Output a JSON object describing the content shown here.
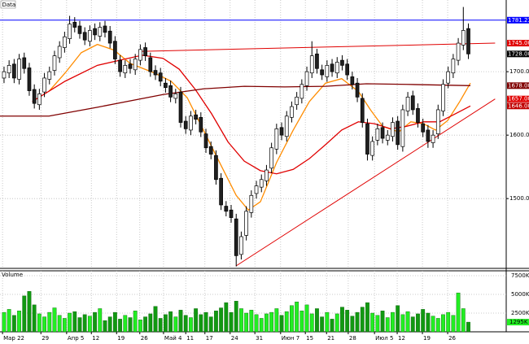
{
  "chart_data": {
    "type": "candlestick",
    "title": "Data",
    "xlim": [
      -0.8,
      99.5
    ],
    "xticks": [
      {
        "value": -0.3,
        "label": "Мар 22"
      },
      {
        "value": 7.3,
        "label": "29"
      },
      {
        "value": 12.4,
        "label": "Апр 5"
      },
      {
        "value": 17.3,
        "label": "12"
      },
      {
        "value": 22.3,
        "label": "19"
      },
      {
        "value": 26.9,
        "label": "26"
      },
      {
        "value": 31.6,
        "label": "Май 4"
      },
      {
        "value": 36,
        "label": "11"
      },
      {
        "value": 39.8,
        "label": "17"
      },
      {
        "value": 44.8,
        "label": "24"
      },
      {
        "value": 49.7,
        "label": "31"
      },
      {
        "value": 54.8,
        "label": "Июн 7"
      },
      {
        "value": 59.7,
        "label": "15"
      },
      {
        "value": 63.9,
        "label": "21"
      },
      {
        "value": 68.2,
        "label": "28"
      },
      {
        "value": 73.4,
        "label": "Июл 5"
      },
      {
        "value": 77.9,
        "label": "12"
      },
      {
        "value": 82.9,
        "label": "19"
      },
      {
        "value": 87.9,
        "label": "26"
      }
    ],
    "ylim": [
      1390,
      1813
    ],
    "yticks": [
      {
        "value": 1500,
        "label": "1500.00"
      },
      {
        "value": 1600,
        "label": "1600.00"
      },
      {
        "value": 1700,
        "label": "1700.00"
      }
    ],
    "grid": true,
    "up_color": "#ffffff",
    "down_color": "#202020",
    "candles": {
      "open": [
        1690,
        1698,
        1712,
        1688,
        1722,
        1706,
        1672,
        1648,
        1668,
        1688,
        1702,
        1722,
        1738,
        1752,
        1778,
        1772,
        1762,
        1748,
        1768,
        1756,
        1772,
        1764,
        1748,
        1718,
        1698,
        1712,
        1703,
        1718,
        1738,
        1722,
        1702,
        1698,
        1682,
        1678,
        1658,
        1668,
        1622,
        1608,
        1632,
        1628,
        1602,
        1582,
        1568,
        1532,
        1488,
        1482,
        1468,
        1412,
        1442,
        1478,
        1508,
        1518,
        1528,
        1548,
        1578,
        1612,
        1598,
        1628,
        1648,
        1658,
        1678,
        1698,
        1728,
        1703,
        1692,
        1712,
        1698,
        1718,
        1712,
        1692,
        1682,
        1658,
        1618,
        1568,
        1592,
        1612,
        1592,
        1598,
        1622,
        1582,
        1638,
        1662,
        1642,
        1618,
        1608,
        1588,
        1602,
        1638,
        1682,
        1698,
        1718,
        1742,
        1768
      ],
      "high": [
        1708,
        1718,
        1720,
        1728,
        1730,
        1714,
        1680,
        1673,
        1698,
        1708,
        1733,
        1748,
        1763,
        1788,
        1786,
        1780,
        1770,
        1773,
        1776,
        1778,
        1780,
        1772,
        1756,
        1726,
        1718,
        1720,
        1728,
        1743,
        1746,
        1730,
        1710,
        1706,
        1690,
        1686,
        1673,
        1676,
        1630,
        1638,
        1640,
        1636,
        1610,
        1590,
        1576,
        1540,
        1496,
        1490,
        1476,
        1448,
        1488,
        1513,
        1528,
        1538,
        1553,
        1588,
        1618,
        1620,
        1638,
        1653,
        1668,
        1688,
        1708,
        1748,
        1736,
        1711,
        1718,
        1720,
        1723,
        1726,
        1720,
        1700,
        1690,
        1666,
        1626,
        1598,
        1618,
        1620,
        1608,
        1628,
        1630,
        1648,
        1668,
        1670,
        1650,
        1626,
        1616,
        1608,
        1648,
        1688,
        1708,
        1728,
        1753,
        1802,
        1776
      ],
      "low": [
        1682,
        1690,
        1682,
        1680,
        1697,
        1662,
        1642,
        1640,
        1660,
        1680,
        1694,
        1714,
        1730,
        1744,
        1762,
        1752,
        1742,
        1740,
        1750,
        1748,
        1754,
        1737,
        1712,
        1692,
        1690,
        1697,
        1695,
        1710,
        1717,
        1692,
        1687,
        1677,
        1667,
        1652,
        1650,
        1612,
        1602,
        1600,
        1617,
        1597,
        1572,
        1562,
        1522,
        1482,
        1472,
        1462,
        1393,
        1404,
        1434,
        1470,
        1500,
        1510,
        1520,
        1540,
        1570,
        1592,
        1590,
        1620,
        1640,
        1650,
        1670,
        1690,
        1697,
        1687,
        1684,
        1692,
        1690,
        1702,
        1687,
        1672,
        1652,
        1612,
        1560,
        1560,
        1584,
        1587,
        1584,
        1590,
        1577,
        1574,
        1630,
        1632,
        1612,
        1597,
        1580,
        1580,
        1594,
        1630,
        1674,
        1690,
        1710,
        1734,
        1720
      ],
      "close": [
        1700,
        1710,
        1690,
        1720,
        1705,
        1670,
        1650,
        1665,
        1690,
        1700,
        1725,
        1740,
        1755,
        1775,
        1770,
        1760,
        1750,
        1765,
        1758,
        1770,
        1762,
        1745,
        1720,
        1700,
        1710,
        1705,
        1720,
        1735,
        1725,
        1700,
        1695,
        1685,
        1675,
        1660,
        1665,
        1620,
        1610,
        1630,
        1625,
        1605,
        1580,
        1570,
        1530,
        1490,
        1480,
        1470,
        1410,
        1440,
        1480,
        1505,
        1520,
        1530,
        1545,
        1580,
        1610,
        1600,
        1630,
        1645,
        1660,
        1680,
        1700,
        1725,
        1705,
        1695,
        1710,
        1700,
        1715,
        1710,
        1695,
        1680,
        1660,
        1620,
        1570,
        1590,
        1610,
        1595,
        1600,
        1620,
        1585,
        1640,
        1660,
        1640,
        1620,
        1605,
        1590,
        1600,
        1640,
        1680,
        1700,
        1720,
        1745,
        1765,
        1728
      ]
    },
    "lines": [
      {
        "color": "#ff8c00",
        "x": [
          8.9,
          12.1,
          15.3,
          18.5,
          21.8,
          25.0,
          29.8,
          33.1,
          36.3,
          39.5,
          42.7,
          46.0,
          48.4,
          50.8,
          54.0,
          57.3,
          60.5,
          63.7,
          66.9,
          70.2,
          72.6,
          75.0,
          78.2,
          80.6,
          83.1,
          85.5,
          87.9,
          90.3,
          92.4
        ],
        "values": [
          1669,
          1698,
          1730,
          1743,
          1734,
          1713,
          1698,
          1685,
          1659,
          1608,
          1557,
          1505,
          1482,
          1495,
          1557,
          1608,
          1653,
          1682,
          1689,
          1669,
          1640,
          1614,
          1605,
          1621,
          1618,
          1608,
          1623,
          1653,
          1682
        ]
      },
      {
        "color": "#e00000",
        "x": [
          5.6,
          12.1,
          18.5,
          23.4,
          27.4,
          31.5,
          34.7,
          37.9,
          41.1,
          44.4,
          47.6,
          50.8,
          54.0,
          57.3,
          60.5,
          63.7,
          66.9,
          70.2,
          73.4,
          76.6,
          79.8,
          83.1,
          86.3,
          89.5,
          92.4
        ],
        "values": [
          1653,
          1685,
          1710,
          1719,
          1726,
          1721,
          1704,
          1672,
          1634,
          1589,
          1559,
          1544,
          1539,
          1546,
          1563,
          1585,
          1608,
          1621,
          1618,
          1610,
          1614,
          1621,
          1621,
          1634,
          1646
        ]
      },
      {
        "color": "#800000",
        "x": [
          -0.8,
          8.9,
          18.5,
          31.5,
          39.5,
          47.6,
          55.6,
          63.7,
          71.8,
          79.8,
          92.4
        ],
        "values": [
          1630,
          1630,
          1644,
          1664,
          1673,
          1677,
          1676,
          1677,
          1681,
          1680,
          1678
        ]
      }
    ],
    "trendlines": [
      {
        "color": "#0000ff",
        "x": [
          -0.8,
          99.5
        ],
        "values": [
          1781.23,
          1781.23
        ]
      },
      {
        "color": "#e00000",
        "x": [
          26.6,
          97.3
        ],
        "values": [
          1732,
          1745
        ]
      },
      {
        "color": "#e00000",
        "x": [
          46.0,
          97.3
        ],
        "values": [
          1394,
          1657
        ]
      }
    ],
    "price_labels": [
      {
        "value": 1781.23,
        "label": "1781.23",
        "color": "#0000ff"
      },
      {
        "value": 1745,
        "label": "1745.00",
        "color": "#e00000"
      },
      {
        "value": 1728,
        "label": "1728.00",
        "color": "#000000"
      },
      {
        "value": 1678,
        "label": "1678.00",
        "color": "#800000"
      },
      {
        "value": 1657,
        "label": "1657.00",
        "color": "#e00000"
      },
      {
        "value": 1646,
        "label": "1646.00",
        "color": "#c00000"
      }
    ],
    "volume": {
      "title": "Volume",
      "ylim": [
        0,
        8150
      ],
      "yticks": [
        {
          "value": 2500,
          "label": "2500K"
        },
        {
          "value": 5000,
          "label": "5000K"
        },
        {
          "value": 7500,
          "label": "7500K"
        }
      ],
      "up_color": "#22ee22",
      "down_color": "#119911",
      "values": [
        2600,
        3000,
        2200,
        2800,
        4800,
        5400,
        3600,
        2400,
        2000,
        2600,
        3200,
        2200,
        1800,
        2500,
        2700,
        1900,
        2300,
        2100,
        2600,
        3100,
        1500,
        2000,
        2600,
        1700,
        2200,
        1900,
        2800,
        1600,
        2000,
        2400,
        3400,
        1800,
        2300,
        2700,
        2000,
        2900,
        2200,
        1900,
        3100,
        2300,
        2600,
        2000,
        2800,
        3200,
        3900,
        2600,
        4100,
        3100,
        2500,
        2900,
        2300,
        1800,
        2400,
        2600,
        3100,
        2200,
        2700,
        3500,
        4000,
        2800,
        3600,
        2400,
        3100,
        2000,
        2600,
        1700,
        2400,
        3300,
        2900,
        2100,
        2600,
        3300,
        3900,
        2500,
        2200,
        2800,
        1900,
        2600,
        3500,
        2300,
        2700,
        2000,
        2400,
        3000,
        2500,
        2100,
        1800,
        2300,
        2600,
        2200,
        5200,
        3100,
        1295
      ],
      "last_label": "1295K"
    }
  }
}
